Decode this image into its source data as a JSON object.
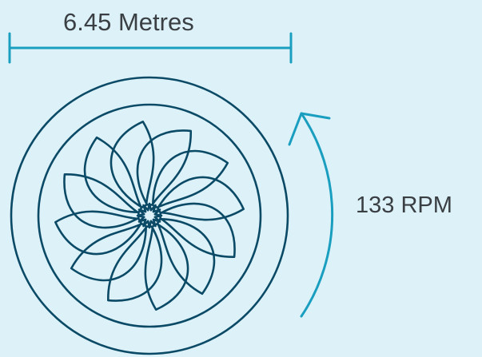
{
  "labels": {
    "diameter": "6.45 Metres",
    "rotation_speed": "133 RPM"
  },
  "colors": {
    "background": "#ddf2f8",
    "turbine_stroke": "#0b4a66",
    "measure_accent": "#1a9ec0",
    "text": "#3a3f44"
  },
  "icons": {
    "fan": "turbine-fan-icon",
    "rotation": "rotation-arrow-icon"
  },
  "fan": {
    "blade_count": 12
  }
}
